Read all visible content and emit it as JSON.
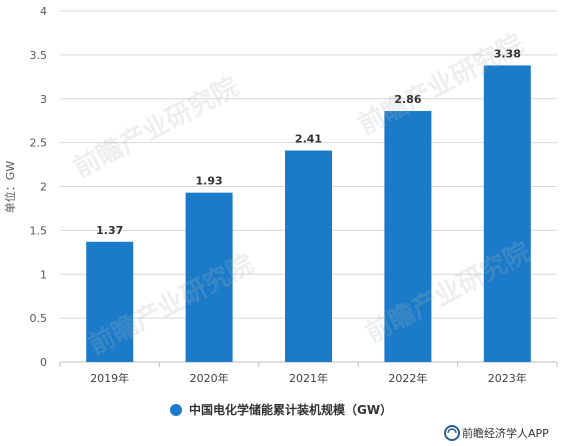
{
  "chart_data": {
    "type": "bar",
    "categories": [
      "2019年",
      "2020年",
      "2021年",
      "2022年",
      "2023年"
    ],
    "series": [
      {
        "name": "中国电化学储能累计装机规模（GW）",
        "values": [
          1.37,
          1.93,
          2.41,
          2.86,
          3.38
        ]
      }
    ],
    "data_labels": [
      "1.37",
      "1.93",
      "2.41",
      "2.86",
      "3.38"
    ],
    "xlabel": "",
    "ylabel": "单位：GW",
    "ylim": [
      0,
      4
    ],
    "yticks": [
      "0",
      "0.5",
      "1",
      "1.5",
      "2",
      "2.5",
      "3",
      "3.5",
      "4"
    ],
    "grid": true,
    "legend": "bottom",
    "colors": {
      "bar": "#1b7bc8",
      "grid": "#d9d9d9",
      "axis": "#bfbfbf"
    }
  },
  "watermark": "前瞻产业研究院",
  "footer": {
    "text": "前瞻经济学人APP",
    "icon": "qianzhan-logo-icon"
  }
}
